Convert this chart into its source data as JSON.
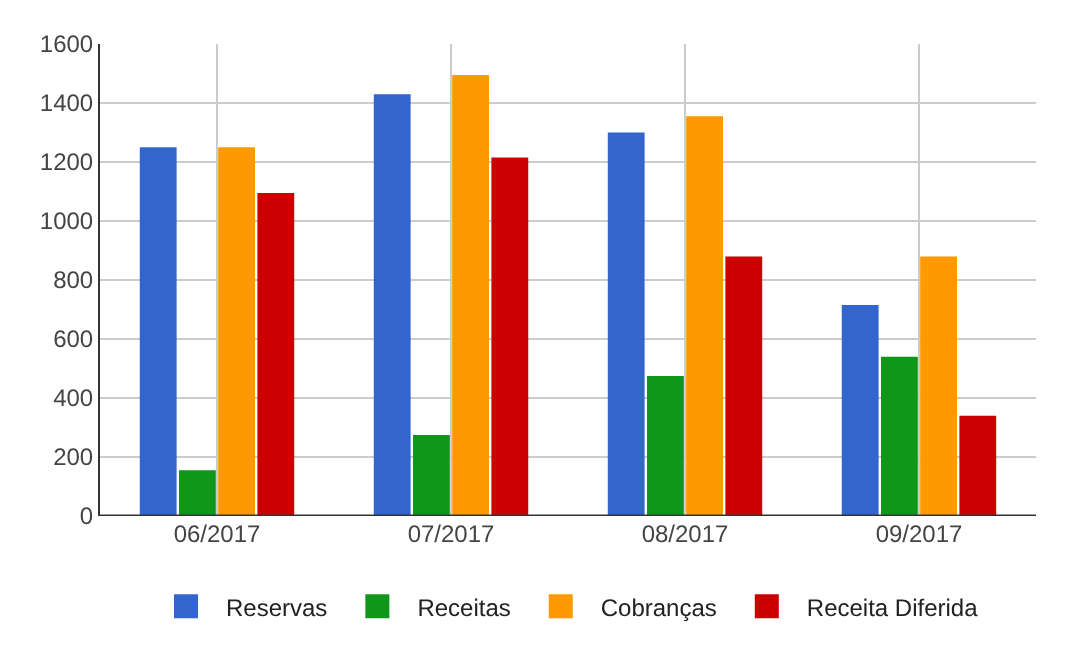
{
  "chart_data": {
    "type": "bar",
    "categories": [
      "06/2017",
      "07/2017",
      "08/2017",
      "09/2017"
    ],
    "series": [
      {
        "name": "Reservas",
        "color": "#3366cc",
        "values": [
          1250,
          1430,
          1300,
          715
        ]
      },
      {
        "name": "Receitas",
        "color": "#109618",
        "values": [
          155,
          275,
          475,
          540
        ]
      },
      {
        "name": "Cobranças",
        "color": "#ff9900",
        "values": [
          1250,
          1495,
          1355,
          880
        ]
      },
      {
        "name": "Receita Diferida",
        "color": "#cc0000",
        "values": [
          1095,
          1215,
          880,
          340
        ]
      }
    ],
    "ylim": [
      0,
      1600
    ],
    "yticks": [
      0,
      200,
      400,
      600,
      800,
      1000,
      1200,
      1400,
      1600
    ],
    "grid": true,
    "legend": "bottom"
  }
}
